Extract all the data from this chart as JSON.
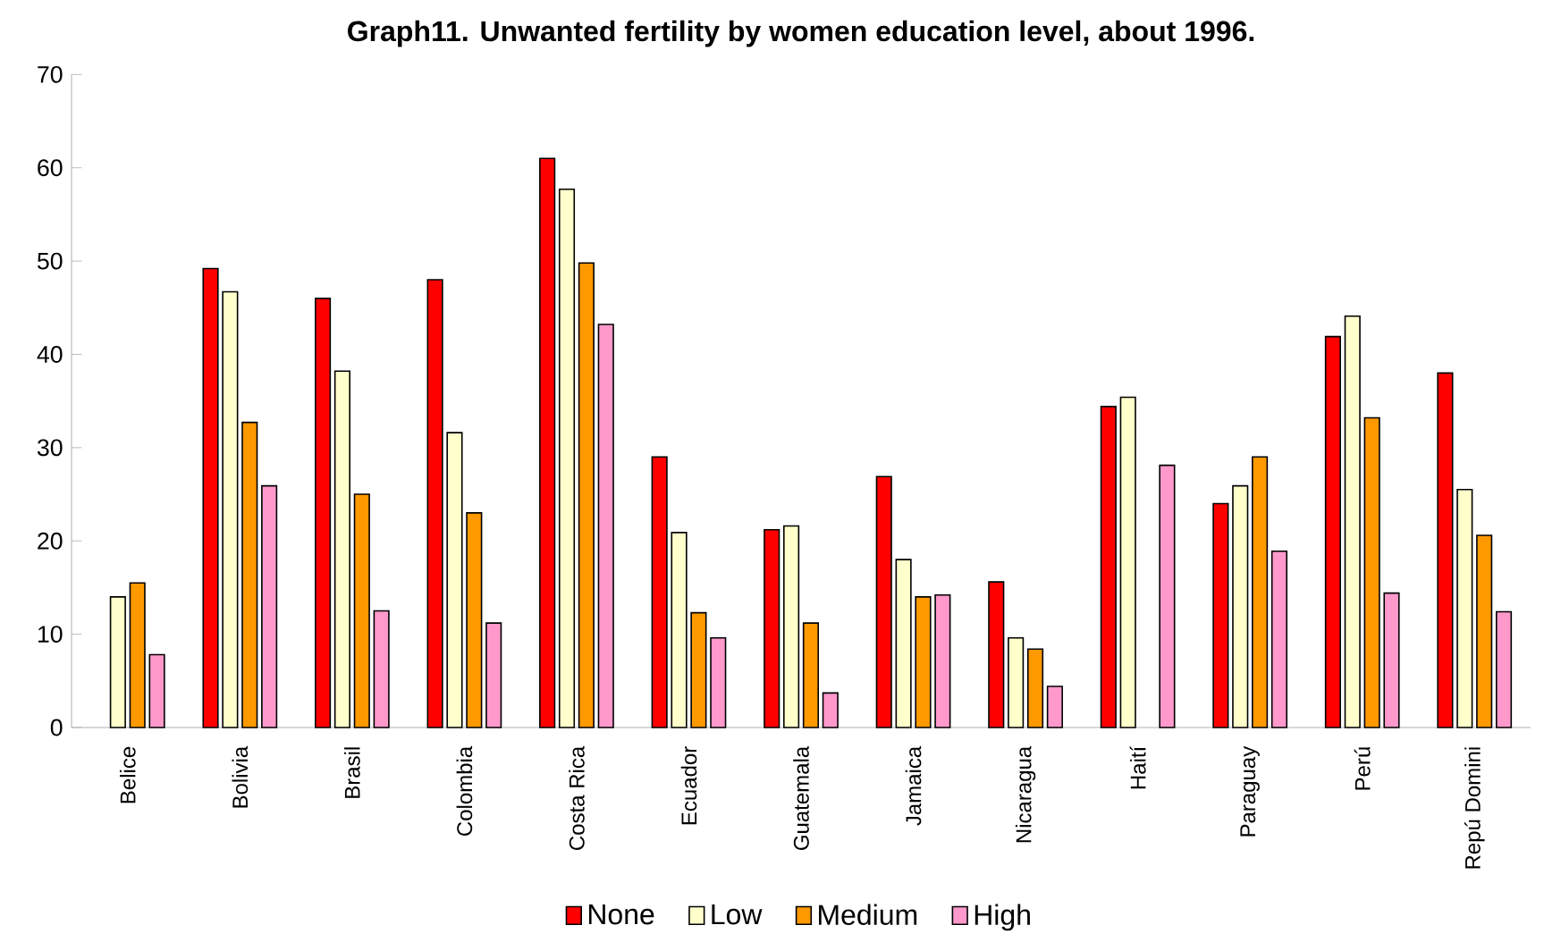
{
  "chart_data": {
    "type": "bar",
    "title": "Graph11. Unwanted fertility by women education level, about 1996.",
    "categories": [
      "Belice",
      "Bolivia",
      "Brasil",
      "Colombia",
      "Costa Rica",
      "Ecuador",
      "Guatemala",
      "Jamaica",
      "Nicaragua",
      "Haití",
      "Paraguay",
      "Perú",
      "Repú Domini"
    ],
    "series": [
      {
        "name": "None",
        "color": "#ff0000",
        "values": [
          null,
          49.2,
          46,
          48,
          61,
          29,
          21.2,
          26.9,
          15.6,
          34.4,
          24,
          41.9,
          38
        ]
      },
      {
        "name": "Low",
        "color": "#ffffcc",
        "values": [
          14,
          46.7,
          38.2,
          31.6,
          57.7,
          20.9,
          21.6,
          18,
          9.6,
          35.4,
          25.9,
          44.1,
          25.5
        ]
      },
      {
        "name": "Medium",
        "color": "#ff9900",
        "values": [
          15.5,
          32.7,
          25,
          23,
          49.8,
          12.3,
          11.2,
          14,
          8.4,
          null,
          29,
          33.2,
          20.6
        ]
      },
      {
        "name": "High",
        "color": "#ff99cc",
        "values": [
          7.8,
          25.9,
          12.5,
          11.2,
          43.2,
          9.6,
          3.7,
          14.2,
          4.4,
          28.1,
          18.9,
          14.4,
          12.4
        ]
      }
    ],
    "ylim": [
      0,
      70
    ],
    "yticks": [
      0,
      10,
      20,
      30,
      40,
      50,
      60,
      70
    ],
    "legend": "bottom",
    "grid": false
  }
}
